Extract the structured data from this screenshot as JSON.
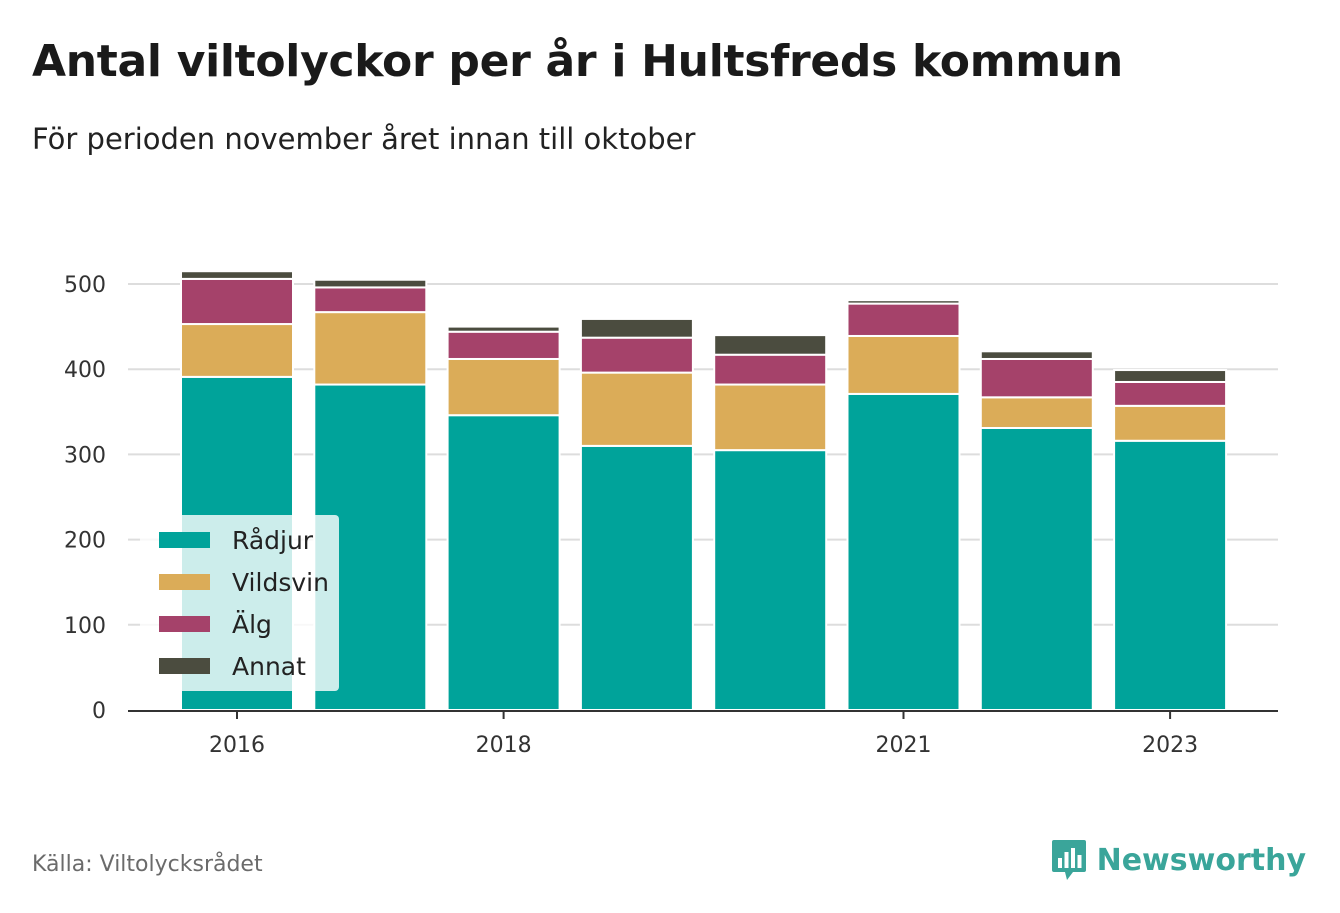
{
  "header": {
    "title": "Antal viltolyckor per år i Hultsfreds kommun",
    "subtitle": "För perioden november året innan till oktober"
  },
  "footer": {
    "source": "Källa: Viltolycksrådet",
    "brand": "Newsworthy",
    "brand_icon": "bar-chart-speech-bubble-icon"
  },
  "colors": {
    "Rådjur": "#00a39a",
    "Vildsvin": "#dbac58",
    "Älg": "#a5426a",
    "Annat": "#4b4c3f",
    "grid": "#dddddd",
    "axis": "#333333",
    "brand": "#3aa59a"
  },
  "chart_data": {
    "type": "bar",
    "stacked": true,
    "x": [
      2016,
      2017,
      2018,
      2019,
      2020,
      2021,
      2022,
      2023
    ],
    "x_tick_labels": [
      "2016",
      "2018",
      "2021",
      "2023"
    ],
    "ylim": [
      0,
      520
    ],
    "y_ticks": [
      0,
      100,
      200,
      300,
      400,
      500
    ],
    "grid": true,
    "legend_position": "bottom-left",
    "series": [
      {
        "name": "Rådjur",
        "values": [
          391,
          382,
          346,
          310,
          305,
          371,
          331,
          316
        ]
      },
      {
        "name": "Vildsvin",
        "values": [
          62,
          85,
          66,
          86,
          77,
          68,
          36,
          41
        ]
      },
      {
        "name": "Älg",
        "values": [
          53,
          29,
          32,
          41,
          35,
          38,
          45,
          28
        ]
      },
      {
        "name": "Annat",
        "values": [
          9,
          9,
          6,
          22,
          23,
          4,
          9,
          14
        ]
      }
    ]
  }
}
